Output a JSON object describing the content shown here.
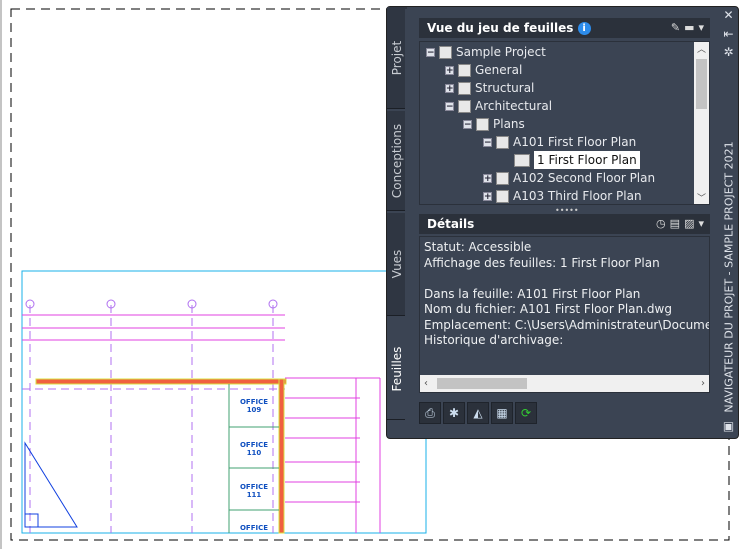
{
  "palette": {
    "title": "NAVIGATEUR DU PROJET - SAMPLE PROJECT 2021",
    "tabs": [
      {
        "label": "Projet"
      },
      {
        "label": "Conceptions"
      },
      {
        "label": "Vues"
      },
      {
        "label": "Feuilles",
        "active": true
      }
    ],
    "sheet_list": {
      "header": "Vue du jeu de feuilles",
      "info_icon": "i",
      "tree": [
        {
          "label": "Sample Project",
          "expander": "−"
        },
        {
          "label": "General",
          "expander": "+"
        },
        {
          "label": "Structural",
          "expander": "+"
        },
        {
          "label": "Architectural",
          "expander": "−"
        },
        {
          "label": "Plans",
          "expander": "−"
        },
        {
          "label": "A101 First Floor Plan",
          "expander": "−"
        },
        {
          "label": "1 First Floor Plan",
          "selected": true
        },
        {
          "label": "A102 Second Floor Plan",
          "expander": "+"
        },
        {
          "label": "A103 Third Floor Plan",
          "expander": "+"
        }
      ]
    },
    "details": {
      "header": "Détails",
      "lines": [
        "Statut: Accessible",
        "Affichage des feuilles: 1 First Floor Plan",
        "",
        "Dans la feuille: A101 First Floor Plan",
        "Nom du fichier: A101 First Floor Plan.dwg",
        "Emplacement: C:\\Users\\Administrateur\\Documents\\A",
        "Historique d'archivage:"
      ]
    },
    "toolbar_icons": [
      "plot-icon",
      "new-sheet-icon",
      "sheet-properties-icon",
      "layout-icon",
      "refresh-icon"
    ]
  },
  "drawing": {
    "rooms": [
      {
        "label": "OFFICE",
        "number": "109"
      },
      {
        "label": "OFFICE",
        "number": "110"
      },
      {
        "label": "OFFICE",
        "number": "111"
      },
      {
        "label": "OFFICE",
        "number": ""
      }
    ]
  }
}
